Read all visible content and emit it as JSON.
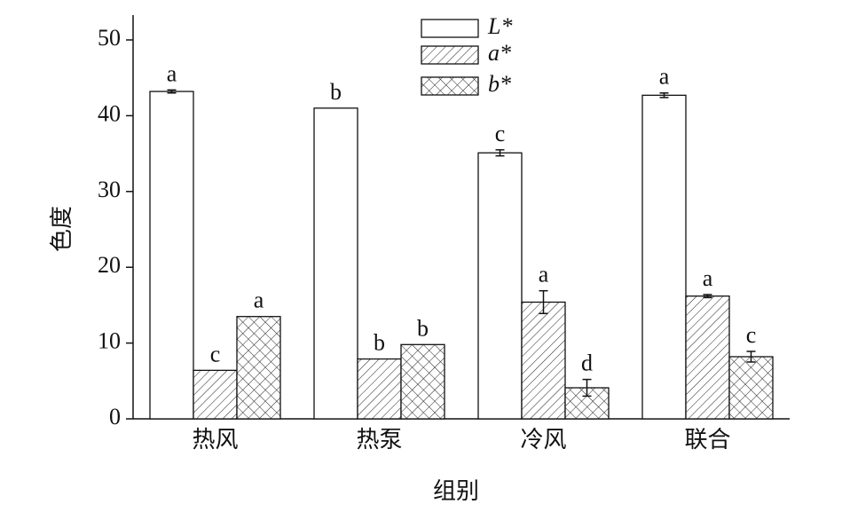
{
  "chart_data": {
    "type": "bar",
    "categories": [
      "热风",
      "热泵",
      "冷风",
      "联合"
    ],
    "x_label": "组别",
    "y_label": "色度",
    "ylim": [
      0,
      50
    ],
    "yticks": [
      0,
      10,
      20,
      30,
      40,
      50
    ],
    "legend": "top-center",
    "series": [
      {
        "name": "L*",
        "pattern": "none",
        "values": [
          43.2,
          41.0,
          35.1,
          42.7
        ],
        "errors": [
          0.2,
          null,
          0.4,
          0.3
        ],
        "significance": [
          "a",
          "b",
          "c",
          "a"
        ]
      },
      {
        "name": "a*",
        "pattern": "diagonal",
        "values": [
          6.4,
          7.9,
          15.4,
          16.2
        ],
        "errors": [
          null,
          null,
          1.5,
          0.2
        ],
        "significance": [
          "c",
          "b",
          "a",
          "a"
        ]
      },
      {
        "name": "b*",
        "pattern": "crosshatch",
        "values": [
          13.5,
          9.8,
          4.1,
          8.2
        ],
        "errors": [
          null,
          null,
          1.1,
          0.7
        ],
        "significance": [
          "a",
          "b",
          "d",
          "c"
        ]
      }
    ]
  }
}
